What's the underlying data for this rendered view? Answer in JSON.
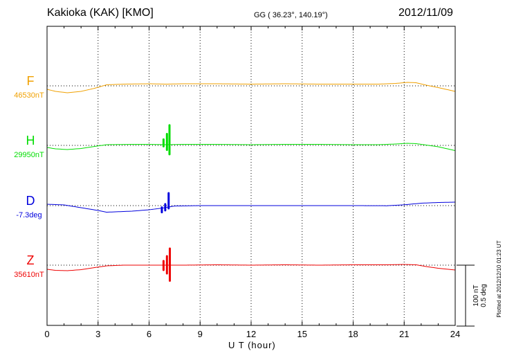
{
  "header": {
    "station": "Kakioka (KAK)  [KMO]",
    "coords": "GG ( 36.23°, 140.19°)",
    "date": "2012/11/09"
  },
  "chart_data": {
    "type": "line",
    "xlabel": "U T (hour)",
    "xlim": [
      0,
      24
    ],
    "x_ticks": [
      0,
      3,
      6,
      9,
      12,
      15,
      18,
      21,
      24
    ],
    "x_tick_labels": [
      "0",
      "3",
      "6",
      "9",
      "12",
      "15",
      "18",
      "21",
      "24"
    ],
    "grid": true,
    "scale": {
      "nt_label": "100 nT",
      "deg_label": "0.5 deg",
      "nt_per_bar": 100,
      "deg_per_bar": 0.5
    },
    "plotted_at": "Plotted at 2012/12/10 01:23 UT",
    "series": [
      {
        "name": "F",
        "baseline_label": "46530nT",
        "unit": "nT",
        "color": "#f0a000",
        "baseline": 46530,
        "points": [
          [
            0,
            -10
          ],
          [
            0.5,
            -16
          ],
          [
            1.2,
            -20
          ],
          [
            2,
            -16
          ],
          [
            2.8,
            -7
          ],
          [
            3.5,
            3
          ],
          [
            4.5,
            5
          ],
          [
            6,
            6
          ],
          [
            7,
            5
          ],
          [
            8,
            6
          ],
          [
            10,
            6
          ],
          [
            12,
            5
          ],
          [
            14,
            6
          ],
          [
            16,
            5
          ],
          [
            18,
            5
          ],
          [
            19.5,
            5
          ],
          [
            20.5,
            7
          ],
          [
            21.2,
            10
          ],
          [
            21.7,
            9
          ],
          [
            22.3,
            2
          ],
          [
            23,
            -5
          ],
          [
            24,
            -16
          ]
        ],
        "oscillations": []
      },
      {
        "name": "H",
        "baseline_label": "29950nT",
        "unit": "nT",
        "color": "#00dd00",
        "baseline": 29950,
        "points": [
          [
            0,
            -6
          ],
          [
            0.5,
            -10
          ],
          [
            1.2,
            -12
          ],
          [
            2,
            -9
          ],
          [
            2.8,
            -3
          ],
          [
            3.5,
            2
          ],
          [
            5,
            3
          ],
          [
            6,
            3
          ],
          [
            7,
            2
          ],
          [
            8,
            3
          ],
          [
            10,
            3
          ],
          [
            12,
            2
          ],
          [
            14,
            3
          ],
          [
            16,
            3
          ],
          [
            18,
            2
          ],
          [
            19.5,
            2
          ],
          [
            20.5,
            4
          ],
          [
            21.2,
            6
          ],
          [
            21.7,
            5
          ],
          [
            22.3,
            1
          ],
          [
            23,
            -4
          ],
          [
            24,
            -15
          ]
        ],
        "oscillations": [
          [
            6.85,
            -5,
            15
          ],
          [
            7.05,
            -15,
            31
          ],
          [
            7.2,
            -28,
            56
          ]
        ]
      },
      {
        "name": "D",
        "baseline_label": "-7.3deg",
        "unit": "deg",
        "color": "#0000dd",
        "baseline": -7.3,
        "points": [
          [
            0,
            0.02
          ],
          [
            1,
            0.01
          ],
          [
            2,
            -0.03
          ],
          [
            3,
            -0.07
          ],
          [
            3.5,
            -0.095
          ],
          [
            5,
            -0.08
          ],
          [
            6,
            -0.06
          ],
          [
            6.8,
            -0.035
          ],
          [
            7.5,
            -0.006
          ],
          [
            9,
            0
          ],
          [
            12,
            0
          ],
          [
            15,
            0
          ],
          [
            18,
            0
          ],
          [
            20,
            -0.002
          ],
          [
            21,
            0.012
          ],
          [
            22,
            0.035
          ],
          [
            23,
            0.045
          ],
          [
            24,
            0.05
          ]
        ],
        "oscillations": [
          [
            6.75,
            -0.06,
            0.01
          ],
          [
            6.95,
            -0.04,
            0.05
          ],
          [
            7.15,
            -0.02,
            0.2
          ]
        ]
      },
      {
        "name": "Z",
        "baseline_label": "35610nT",
        "unit": "nT",
        "color": "#ee0000",
        "baseline": 35610,
        "points": [
          [
            0,
            -12
          ],
          [
            0.5,
            -15
          ],
          [
            1.2,
            -16
          ],
          [
            2,
            -13
          ],
          [
            2.8,
            -7
          ],
          [
            3.5,
            -2
          ],
          [
            4.5,
            0
          ],
          [
            6,
            0
          ],
          [
            8,
            0
          ],
          [
            10,
            1
          ],
          [
            12,
            0
          ],
          [
            14,
            1
          ],
          [
            16,
            0
          ],
          [
            18,
            1
          ],
          [
            20,
            1
          ],
          [
            21,
            2
          ],
          [
            21.7,
            1
          ],
          [
            22.3,
            -4
          ],
          [
            23,
            -9
          ],
          [
            24,
            -14
          ]
        ],
        "oscillations": [
          [
            6.85,
            -14,
            12
          ],
          [
            7.05,
            -24,
            26
          ],
          [
            7.22,
            -45,
            48
          ]
        ]
      }
    ]
  }
}
